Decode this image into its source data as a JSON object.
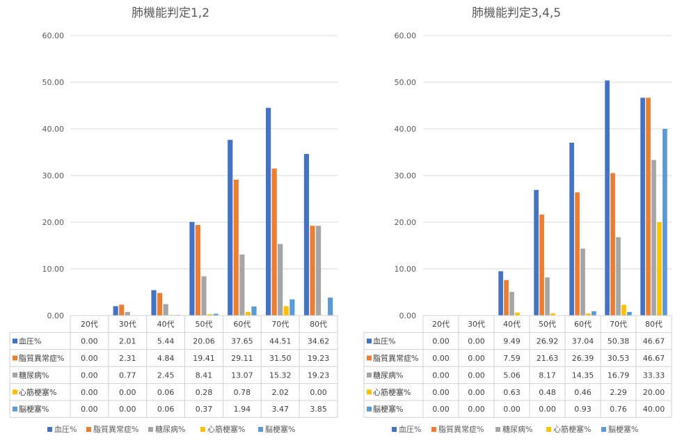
{
  "series_colors": [
    "#4472C4",
    "#ED7D31",
    "#A5A5A5",
    "#FFC000",
    "#5B9BD5"
  ],
  "chart_data": [
    {
      "type": "bar",
      "title": "肺機能判定1,2",
      "categories": [
        "20代",
        "30代",
        "40代",
        "50代",
        "60代",
        "70代",
        "80代"
      ],
      "ylim": [
        0,
        60
      ],
      "yticks": [
        "0.00",
        "10.00",
        "20.00",
        "30.00",
        "40.00",
        "50.00",
        "60.00"
      ],
      "grid": true,
      "legend": "bottom",
      "data_table": true,
      "series": [
        {
          "name": "血圧%",
          "values": [
            0.0,
            2.01,
            5.44,
            20.06,
            37.65,
            44.51,
            34.62
          ],
          "labels": [
            "0.00",
            "2.01",
            "5.44",
            "20.06",
            "37.65",
            "44.51",
            "34.62"
          ]
        },
        {
          "name": "脂質異常症%",
          "values": [
            0.0,
            2.31,
            4.84,
            19.41,
            29.11,
            31.5,
            19.23
          ],
          "labels": [
            "0.00",
            "2.31",
            "4.84",
            "19.41",
            "29.11",
            "31.50",
            "19.23"
          ]
        },
        {
          "name": "糖尿病%",
          "values": [
            0.0,
            0.77,
            2.45,
            8.41,
            13.07,
            15.32,
            19.23
          ],
          "labels": [
            "0.00",
            "0.77",
            "2.45",
            "8.41",
            "13.07",
            "15.32",
            "19.23"
          ]
        },
        {
          "name": "心筋梗塞%",
          "values": [
            0.0,
            0.0,
            0.06,
            0.28,
            0.78,
            2.02,
            0.0
          ],
          "labels": [
            "0.00",
            "0.00",
            "0.06",
            "0.28",
            "0.78",
            "2.02",
            "0.00"
          ]
        },
        {
          "name": "脳梗塞%",
          "values": [
            0.0,
            0.0,
            0.06,
            0.37,
            1.94,
            3.47,
            3.85
          ],
          "labels": [
            "0.00",
            "0.00",
            "0.06",
            "0.37",
            "1.94",
            "3.47",
            "3.85"
          ]
        }
      ]
    },
    {
      "type": "bar",
      "title": "肺機能判定3,4,5",
      "categories": [
        "20代",
        "30代",
        "40代",
        "50代",
        "60代",
        "70代",
        "80代"
      ],
      "ylim": [
        0,
        60
      ],
      "yticks": [
        "0.00",
        "10.00",
        "20.00",
        "30.00",
        "40.00",
        "50.00",
        "60.00"
      ],
      "grid": true,
      "legend": "bottom",
      "data_table": true,
      "series": [
        {
          "name": "血圧%",
          "values": [
            0.0,
            0.0,
            9.49,
            26.92,
            37.04,
            50.38,
            46.67
          ],
          "labels": [
            "0.00",
            "0.00",
            "9.49",
            "26.92",
            "37.04",
            "50.38",
            "46.67"
          ]
        },
        {
          "name": "脂質異常症%",
          "values": [
            0.0,
            0.0,
            7.59,
            21.63,
            26.39,
            30.53,
            46.67
          ],
          "labels": [
            "0.00",
            "0.00",
            "7.59",
            "21.63",
            "26.39",
            "30.53",
            "46.67"
          ]
        },
        {
          "name": "糖尿病%",
          "values": [
            0.0,
            0.0,
            5.06,
            8.17,
            14.35,
            16.79,
            33.33
          ],
          "labels": [
            "0.00",
            "0.00",
            "5.06",
            "8.17",
            "14.35",
            "16.79",
            "33.33"
          ]
        },
        {
          "name": "心筋梗塞%",
          "values": [
            0.0,
            0.0,
            0.63,
            0.48,
            0.46,
            2.29,
            20.0
          ],
          "labels": [
            "0.00",
            "0.00",
            "0.63",
            "0.48",
            "0.46",
            "2.29",
            "20.00"
          ]
        },
        {
          "name": "脳梗塞%",
          "values": [
            0.0,
            0.0,
            0.0,
            0.0,
            0.93,
            0.76,
            40.0
          ],
          "labels": [
            "0.00",
            "0.00",
            "0.00",
            "0.00",
            "0.93",
            "0.76",
            "40.00"
          ]
        }
      ]
    }
  ]
}
